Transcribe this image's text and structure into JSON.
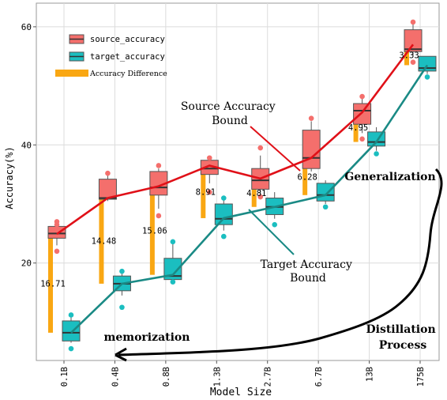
{
  "chart_data": {
    "type": "box",
    "xlabel": "Model Size",
    "ylabel": "Accuracy(%)",
    "ylim": [
      3.5,
      64
    ],
    "yticks": [
      20,
      40,
      60
    ],
    "grid": true,
    "legend_position": "top-left",
    "categories": [
      "0.1B",
      "0.4B",
      "0.8B",
      "1.3B",
      "2.7B",
      "6.7B",
      "13B",
      "175B"
    ],
    "legend": [
      {
        "label": "source_accuracy",
        "color": "#f46f6c"
      },
      {
        "label": "target_accuracy",
        "color": "#1bbec0"
      },
      {
        "label": "Accuracy Difference",
        "color": "#f9a713"
      }
    ],
    "series": [
      {
        "name": "source_accuracy",
        "color": "#f46f6c",
        "boxes": [
          {
            "whislo": 23.0,
            "q1": 24.2,
            "med": 25.0,
            "q3": 26.2,
            "whishi": 26.8,
            "fliers": [
              22.0,
              26.5,
              27.0
            ]
          },
          {
            "whislo": 30.5,
            "q1": 30.8,
            "med": 31.0,
            "q3": 34.2,
            "whishi": 35.0,
            "fliers": [
              35.2
            ]
          },
          {
            "whislo": 29.2,
            "q1": 31.5,
            "med": 32.8,
            "q3": 35.5,
            "whishi": 36.0,
            "fliers": [
              28.0,
              36.5
            ]
          },
          {
            "whislo": 33.5,
            "q1": 35.0,
            "med": 36.0,
            "q3": 37.4,
            "whishi": 37.8,
            "fliers": [
              32.0,
              37.8
            ]
          },
          {
            "whislo": 31.5,
            "q1": 32.5,
            "med": 34.0,
            "q3": 36.0,
            "whishi": 38.2,
            "fliers": [
              31.2,
              39.5
            ]
          },
          {
            "whislo": 35.5,
            "q1": 36.0,
            "med": 37.8,
            "q3": 42.5,
            "whishi": 44.0,
            "fliers": [
              44.5
            ]
          },
          {
            "whislo": 42.0,
            "q1": 43.5,
            "med": 45.8,
            "q3": 47.0,
            "whishi": 47.8,
            "fliers": [
              41.0,
              48.2
            ]
          },
          {
            "whislo": 55.0,
            "q1": 55.8,
            "med": 56.2,
            "q3": 59.5,
            "whishi": 60.5,
            "fliers": [
              54.0,
              60.8
            ]
          }
        ]
      },
      {
        "name": "target_accuracy",
        "color": "#1bbec0",
        "boxes": [
          {
            "whislo": 6.5,
            "q1": 6.8,
            "med": 8.2,
            "q3": 10.2,
            "whishi": 10.8,
            "fliers": [
              5.5,
              11.2
            ]
          },
          {
            "whislo": 14.5,
            "q1": 15.3,
            "med": 16.5,
            "q3": 17.8,
            "whishi": 18.2,
            "fliers": [
              12.5,
              18.6
            ]
          },
          {
            "whislo": 17.2,
            "q1": 17.2,
            "med": 17.8,
            "q3": 20.8,
            "whishi": 23.5,
            "fliers": [
              16.8,
              23.6
            ]
          },
          {
            "whislo": 25.5,
            "q1": 26.5,
            "med": 27.5,
            "q3": 30.0,
            "whishi": 30.8,
            "fliers": [
              24.5,
              31.0
            ]
          },
          {
            "whislo": 27.5,
            "q1": 28.2,
            "med": 29.5,
            "q3": 31.0,
            "whishi": 32.0,
            "fliers": [
              26.5
            ]
          },
          {
            "whislo": 30.0,
            "q1": 30.5,
            "med": 31.5,
            "q3": 33.5,
            "whishi": 34.0,
            "fliers": [
              29.5
            ]
          },
          {
            "whislo": 39.0,
            "q1": 39.8,
            "med": 40.5,
            "q3": 42.2,
            "whishi": 43.0,
            "fliers": [
              38.5
            ]
          },
          {
            "whislo": 52.0,
            "q1": 52.5,
            "med": 53.0,
            "q3": 55.0,
            "whishi": 55.0,
            "fliers": [
              51.5
            ]
          }
        ]
      }
    ],
    "trend_lines": [
      {
        "name": "source_accuracy",
        "color": "#e01018",
        "values": [
          24.9,
          31.0,
          33.0,
          36.5,
          34.3,
          37.8,
          45.5,
          57.0
        ]
      },
      {
        "name": "target_accuracy",
        "color": "#1a8a85",
        "values": [
          8.2,
          16.5,
          18.0,
          27.6,
          29.5,
          31.5,
          40.5,
          53.5
        ]
      }
    ],
    "difference_bars": {
      "color": "#f9a713",
      "values": [
        16.71,
        14.48,
        15.06,
        8.91,
        4.81,
        6.28,
        4.95,
        3.33
      ],
      "labels": [
        "16.71",
        "14.48",
        "15.06",
        "8.91",
        "4.81",
        "6.28",
        "4.95",
        "3.33"
      ]
    },
    "annotations": [
      {
        "id": "source-bound",
        "lines": [
          "Source Accuracy",
          "Bound"
        ]
      },
      {
        "id": "target-bound",
        "lines": [
          "Target Accuracy",
          "Bound"
        ]
      },
      {
        "id": "generalization",
        "lines": [
          "Generalization"
        ]
      },
      {
        "id": "memorization",
        "lines": [
          "memorization"
        ]
      },
      {
        "id": "distillation",
        "lines": [
          "Distillation",
          "Process"
        ]
      }
    ]
  }
}
